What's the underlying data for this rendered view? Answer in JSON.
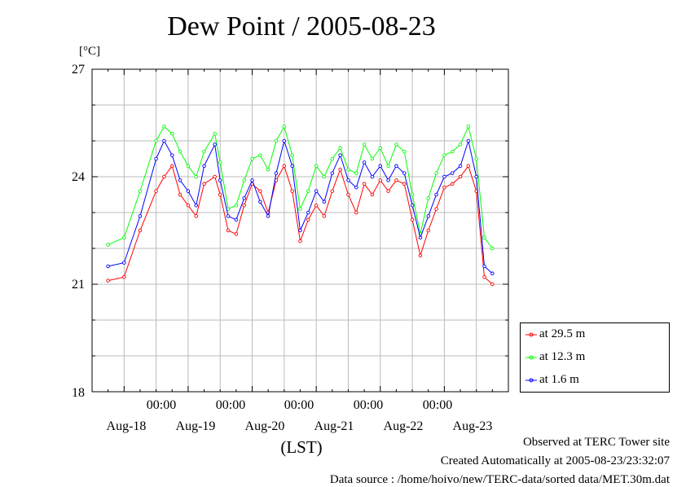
{
  "chart_data": {
    "type": "line",
    "title": "Dew Point / 2005-08-23",
    "yunit": "[°C]",
    "xlabel": "(LST)",
    "ylim": [
      18,
      27
    ],
    "xlim": [
      "2005-08-17 12:00",
      "2005-08-24 00:00"
    ],
    "yticks": [
      "18",
      "21",
      "24",
      "27"
    ],
    "xticks_time": [
      "00:00",
      "00:00",
      "00:00",
      "00:00",
      "00:00"
    ],
    "xticks_day": [
      "Aug-18",
      "Aug-19",
      "Aug-20",
      "Aug-21",
      "Aug-22",
      "Aug-23"
    ],
    "grid": true,
    "legend_position": "bottom-right outside",
    "series": [
      {
        "name": "at 29.5 m",
        "color": "#ff0000",
        "x_hours": [
          0,
          6,
          12,
          18,
          21,
          24,
          27,
          30,
          33,
          36,
          40,
          42,
          45,
          48,
          51,
          54,
          57,
          60,
          63,
          66,
          69,
          72,
          75,
          78,
          81,
          84,
          87,
          90,
          93,
          96,
          99,
          102,
          105,
          108,
          111,
          114,
          117,
          120,
          123,
          126,
          129,
          132,
          135,
          138,
          141,
          144
        ],
        "y": [
          21.1,
          21.2,
          22.5,
          23.6,
          24.0,
          24.3,
          23.5,
          23.2,
          22.9,
          23.8,
          24.0,
          23.5,
          22.5,
          22.4,
          23.2,
          23.8,
          23.6,
          23.0,
          23.9,
          24.3,
          23.6,
          22.2,
          22.8,
          23.2,
          22.9,
          23.6,
          24.2,
          23.5,
          23.0,
          23.8,
          23.5,
          23.9,
          23.6,
          23.9,
          23.8,
          22.8,
          21.8,
          22.5,
          23.1,
          23.7,
          23.8,
          24.0,
          24.3,
          23.6,
          21.2,
          21.0
        ]
      },
      {
        "name": "at 12.3 m",
        "color": "#00ff00",
        "x_hours": [
          0,
          6,
          12,
          18,
          21,
          24,
          27,
          30,
          33,
          36,
          40,
          42,
          45,
          48,
          51,
          54,
          57,
          60,
          63,
          66,
          69,
          72,
          75,
          78,
          81,
          84,
          87,
          90,
          93,
          96,
          99,
          102,
          105,
          108,
          111,
          114,
          117,
          120,
          123,
          126,
          129,
          132,
          135,
          138,
          141,
          144
        ],
        "y": [
          22.1,
          22.3,
          23.6,
          25.0,
          25.4,
          25.2,
          24.7,
          24.3,
          24.0,
          24.7,
          25.2,
          24.4,
          23.1,
          23.2,
          23.9,
          24.5,
          24.6,
          24.2,
          25.0,
          25.4,
          24.6,
          23.1,
          23.6,
          24.3,
          24.0,
          24.5,
          24.8,
          24.2,
          24.1,
          24.9,
          24.5,
          24.8,
          24.3,
          24.9,
          24.7,
          23.5,
          22.4,
          23.4,
          24.1,
          24.6,
          24.7,
          24.9,
          25.4,
          24.5,
          22.3,
          22.0
        ]
      },
      {
        "name": "at 1.6 m",
        "color": "#0000ff",
        "x_hours": [
          0,
          6,
          12,
          18,
          21,
          24,
          27,
          30,
          33,
          36,
          40,
          42,
          45,
          48,
          51,
          54,
          57,
          60,
          63,
          66,
          69,
          72,
          75,
          78,
          81,
          84,
          87,
          90,
          93,
          96,
          99,
          102,
          105,
          108,
          111,
          114,
          117,
          120,
          123,
          126,
          129,
          132,
          135,
          138,
          141,
          144
        ],
        "y": [
          21.5,
          21.6,
          22.9,
          24.5,
          25.0,
          24.6,
          23.9,
          23.6,
          23.2,
          24.3,
          24.9,
          23.9,
          22.9,
          22.8,
          23.4,
          23.9,
          23.3,
          22.9,
          24.1,
          25.0,
          24.3,
          22.5,
          23.0,
          23.6,
          23.3,
          24.1,
          24.6,
          23.9,
          23.7,
          24.4,
          24.0,
          24.3,
          23.9,
          24.3,
          24.1,
          23.2,
          22.3,
          22.9,
          23.5,
          24.0,
          24.1,
          24.3,
          25.0,
          24.0,
          21.5,
          21.3
        ]
      }
    ]
  },
  "footer": {
    "line1": "Observed at TERC Tower site",
    "line2": "Created Automatically at 2005-08-23/23:32:07",
    "line3": "Data source : /home/hoivo/new/TERC-data/sorted  data/MET.30m.dat"
  }
}
